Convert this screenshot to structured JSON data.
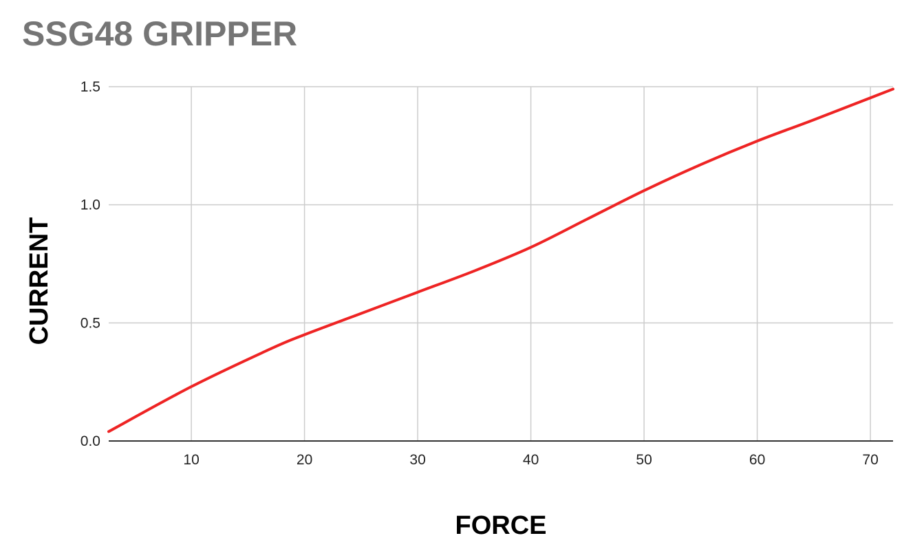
{
  "chart_data": {
    "type": "line",
    "title": "SSG48 GRIPPER",
    "xlabel": "FORCE",
    "ylabel": "CURRENT",
    "xlim": [
      2.7,
      72
    ],
    "ylim": [
      0,
      1.5
    ],
    "x_ticks": [
      10,
      20,
      30,
      40,
      50,
      60,
      70
    ],
    "x_tick_labels": [
      "10",
      "20",
      "30",
      "40",
      "50",
      "60",
      "70"
    ],
    "y_ticks": [
      0,
      0.5,
      1.0,
      1.5
    ],
    "y_tick_labels": [
      "0.0",
      "0.5",
      "1.0",
      "1.5"
    ],
    "grid": true,
    "legend": "none",
    "series": [
      {
        "color": "#ee2424",
        "x": [
          2.7,
          10,
          17,
          20,
          25,
          30,
          35,
          40,
          45,
          50,
          55,
          60,
          65,
          72
        ],
        "y": [
          0.04,
          0.23,
          0.39,
          0.45,
          0.54,
          0.63,
          0.72,
          0.82,
          0.94,
          1.06,
          1.17,
          1.27,
          1.36,
          1.49
        ]
      }
    ]
  }
}
